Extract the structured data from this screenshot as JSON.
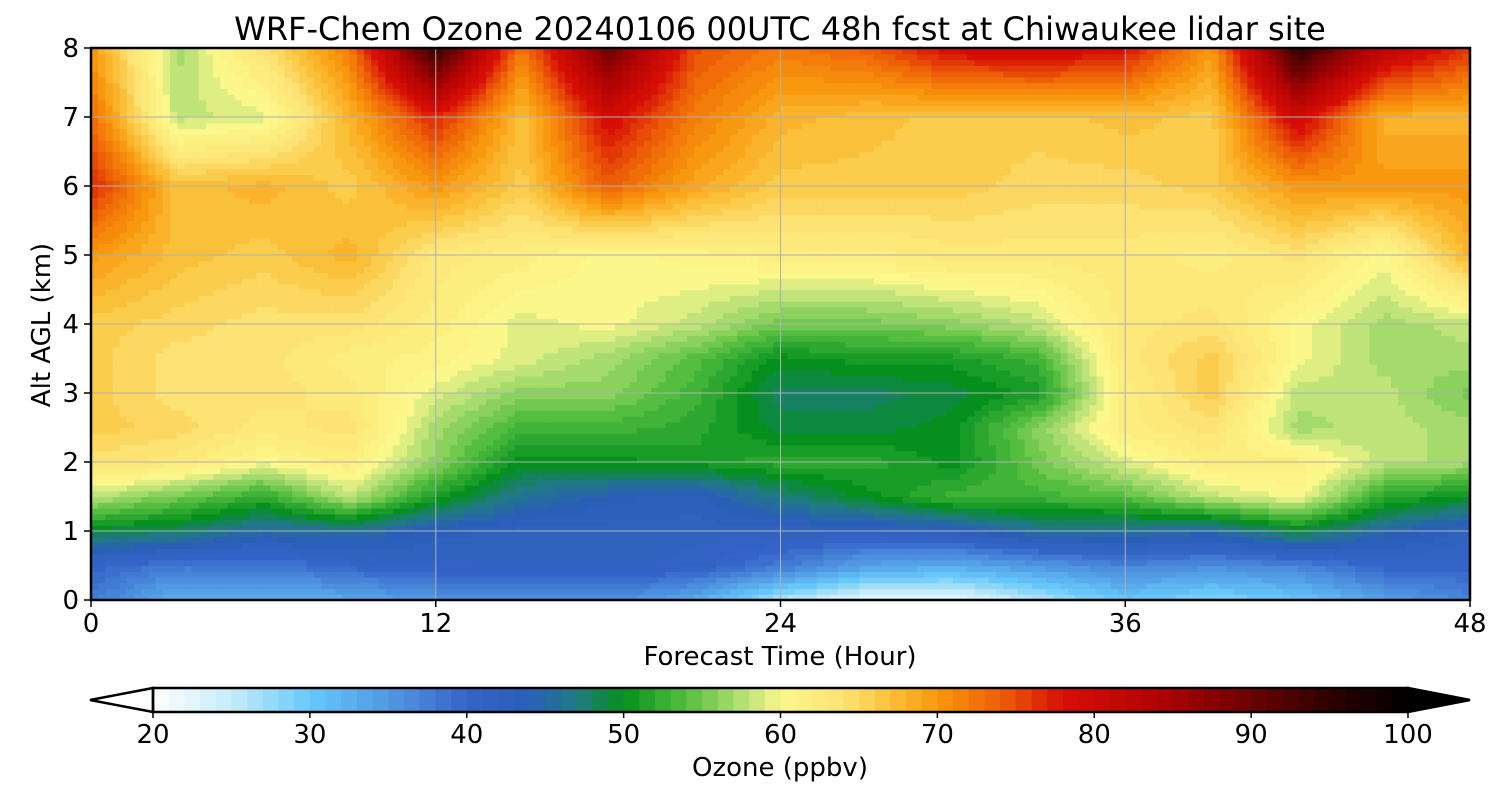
{
  "chart_data": {
    "type": "heatmap",
    "plot_style": "filled-contour time-height cross-section",
    "title": "WRF-Chem Ozone  20240106 00UTC 48h fcst at Chiwaukee lidar site",
    "xlabel": "Forecast Time (Hour)",
    "ylabel": "Alt AGL (km)",
    "xlim": [
      0,
      48
    ],
    "ylim": [
      0,
      8
    ],
    "xticks": [
      0,
      12,
      24,
      36,
      48
    ],
    "yticks": [
      0,
      1,
      2,
      3,
      4,
      5,
      6,
      7,
      8
    ],
    "grid": true,
    "x": [
      0,
      3,
      6,
      9,
      12,
      15,
      18,
      21,
      24,
      27,
      30,
      33,
      36,
      39,
      42,
      45,
      48
    ],
    "y": [
      0,
      0.5,
      1,
      1.5,
      2,
      2.5,
      3,
      3.5,
      4,
      5,
      6,
      7,
      8
    ],
    "z_units": "ppbv",
    "z_rows_by_altitude": [
      [
        38,
        32,
        32,
        33,
        35,
        35,
        36,
        33,
        26,
        22,
        22,
        26,
        30,
        28,
        30,
        34,
        37
      ],
      [
        40,
        38,
        38,
        40,
        41,
        42,
        42,
        41,
        38,
        34,
        33,
        35,
        37,
        36,
        37,
        40,
        40
      ],
      [
        49,
        48,
        45,
        46,
        43,
        42,
        42,
        42,
        42,
        42,
        43,
        46,
        46,
        45,
        49,
        45,
        42
      ],
      [
        58,
        55,
        52,
        58,
        51,
        46,
        44,
        43,
        47,
        50,
        53,
        53,
        54,
        58,
        60,
        52,
        50
      ],
      [
        64,
        63,
        60,
        62,
        56,
        50,
        50,
        51,
        52,
        52,
        50,
        55,
        59,
        62,
        62,
        58,
        57
      ],
      [
        66,
        65,
        63,
        64,
        57,
        53,
        53,
        52,
        49,
        49,
        50,
        56,
        62,
        64,
        57,
        58,
        57
      ],
      [
        66,
        64,
        64,
        63,
        59,
        56,
        56,
        53,
        48,
        48,
        49,
        51,
        62,
        66,
        58,
        58,
        55
      ],
      [
        66,
        64,
        64,
        62,
        61,
        59,
        57,
        54,
        50,
        51,
        51,
        53,
        63,
        66,
        60,
        57,
        57
      ],
      [
        66,
        65,
        64,
        64,
        62,
        59,
        60,
        58,
        55,
        55,
        56,
        58,
        63,
        64,
        60,
        57,
        58
      ],
      [
        70,
        67,
        66,
        68,
        63,
        62,
        60,
        61,
        62,
        62,
        63,
        63,
        63,
        62,
        64,
        60,
        68
      ],
      [
        77,
        67,
        68,
        66,
        70,
        66,
        74,
        69,
        66,
        66,
        66,
        65,
        65,
        66,
        70,
        70,
        70
      ],
      [
        73,
        58,
        59,
        68,
        77,
        67,
        79,
        72,
        68,
        67,
        66,
        66,
        67,
        66,
        80,
        68,
        68
      ],
      [
        70,
        57,
        64,
        72,
        95,
        72,
        90,
        75,
        72,
        74,
        79,
        80,
        78,
        70,
        95,
        82,
        76
      ]
    ],
    "colorbar": {
      "label": "Ozone  (ppbv)",
      "orientation": "horizontal",
      "extend": "both",
      "min": 20,
      "max": 100,
      "ticks": [
        "20",
        "30",
        "40",
        "50",
        "60",
        "70",
        "80",
        "90",
        "100"
      ],
      "stops": [
        [
          20,
          "#ffffff"
        ],
        [
          25,
          "#c6ecfa"
        ],
        [
          30,
          "#66c8fa"
        ],
        [
          36,
          "#4d8ede"
        ],
        [
          40,
          "#3564c8"
        ],
        [
          44,
          "#2a5fb8"
        ],
        [
          47,
          "#207a84"
        ],
        [
          50,
          "#05901e"
        ],
        [
          54,
          "#55be40"
        ],
        [
          58,
          "#c0e47a"
        ],
        [
          60,
          "#fbf78a"
        ],
        [
          64,
          "#fde374"
        ],
        [
          67,
          "#fbc03a"
        ],
        [
          70,
          "#f8980e"
        ],
        [
          74,
          "#ed5f07"
        ],
        [
          78,
          "#d70f06"
        ],
        [
          84,
          "#b00303"
        ],
        [
          90,
          "#6a0202"
        ],
        [
          95,
          "#2e0101"
        ],
        [
          100,
          "#000000"
        ]
      ]
    }
  }
}
